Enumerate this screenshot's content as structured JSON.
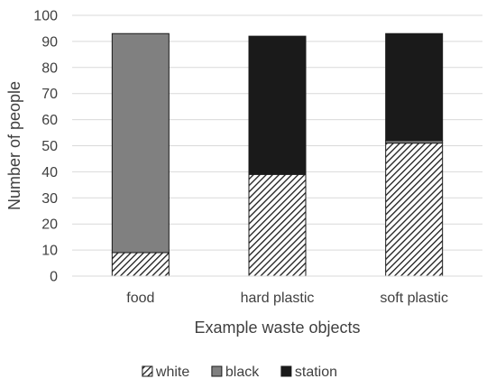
{
  "chart_data": {
    "type": "bar",
    "stacked": true,
    "categories": [
      "food",
      "hard plastic",
      "soft plastic"
    ],
    "series": [
      {
        "name": "white",
        "values": [
          9,
          39,
          51
        ],
        "color": "#ffffff",
        "pattern": "diagonal-hatch"
      },
      {
        "name": "black",
        "values": [
          84,
          0,
          1
        ],
        "color": "#808080"
      },
      {
        "name": "station",
        "values": [
          0,
          53,
          41
        ],
        "color": "#1a1a1a"
      }
    ],
    "xlabel": "Example waste objects",
    "ylabel": "Number of people",
    "ylim": [
      0,
      100
    ],
    "yticks": [
      "0",
      "10",
      "20",
      "30",
      "40",
      "50",
      "60",
      "70",
      "80",
      "90",
      "100"
    ],
    "grid": true,
    "legend_position": "bottom"
  }
}
